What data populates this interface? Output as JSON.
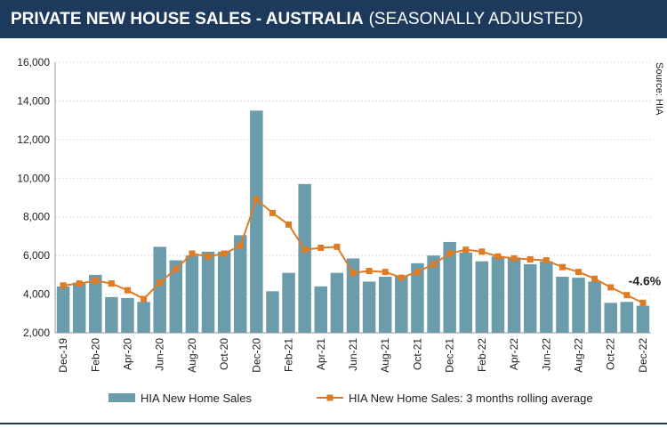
{
  "chart_data": {
    "type": "bar_line",
    "title": "PRIVATE NEW HOUSE SALES -  AUSTRALIA",
    "subtitle": "(SEASONALLY ADJUSTED)",
    "source": "Source: HIA",
    "annotation": "-4.6%",
    "categories": [
      "Dec-19",
      null,
      "Feb-20",
      null,
      "Apr-20",
      null,
      "Jun-20",
      null,
      "Aug-20",
      null,
      "Oct-20",
      null,
      "Dec-20",
      null,
      "Feb-21",
      null,
      "Apr-21",
      null,
      "Jun-21",
      null,
      "Aug-21",
      null,
      "Oct-21",
      null,
      "Dec-21",
      null,
      "Feb-22",
      null,
      "Apr-22",
      null,
      "Jun-22",
      null,
      "Aug-22",
      null,
      "Oct-22",
      null,
      "Dec-22"
    ],
    "series": [
      {
        "name": "HIA New Home Sales",
        "kind": "bar",
        "color": "#6b9cac",
        "values": [
          4400,
          4600,
          5000,
          3850,
          3800,
          3600,
          6450,
          5750,
          6000,
          6200,
          6200,
          7050,
          13500,
          4150,
          5100,
          9700,
          4400,
          5100,
          5850,
          4650,
          4900,
          4950,
          5600,
          6000,
          6700,
          6150,
          5700,
          5950,
          5900,
          5550,
          5700,
          4900,
          4850,
          4650,
          3550,
          3600,
          3400
        ]
      },
      {
        "name": "HIA New Home Sales: 3 months rolling average",
        "kind": "line",
        "color": "#e07b24",
        "values": [
          4450,
          4550,
          4700,
          4550,
          4200,
          3750,
          4600,
          5300,
          6100,
          5950,
          6100,
          6500,
          8900,
          8200,
          7600,
          6300,
          6400,
          6450,
          5100,
          5200,
          5150,
          4850,
          5150,
          5550,
          6100,
          6300,
          6200,
          5950,
          5850,
          5800,
          5750,
          5400,
          5150,
          4800,
          4350,
          3950,
          3550
        ]
      }
    ],
    "ylim": [
      2000,
      16000
    ],
    "yticks": [
      {
        "value": 2000,
        "label": "2,000"
      },
      {
        "value": 4000,
        "label": "4,000"
      },
      {
        "value": 6000,
        "label": "6,000"
      },
      {
        "value": 8000,
        "label": "8,000"
      },
      {
        "value": 10000,
        "label": "10,000"
      },
      {
        "value": 12000,
        "label": "12,000"
      },
      {
        "value": 14000,
        "label": "14,000"
      },
      {
        "value": 16000,
        "label": "16,000"
      }
    ],
    "grid": true
  }
}
